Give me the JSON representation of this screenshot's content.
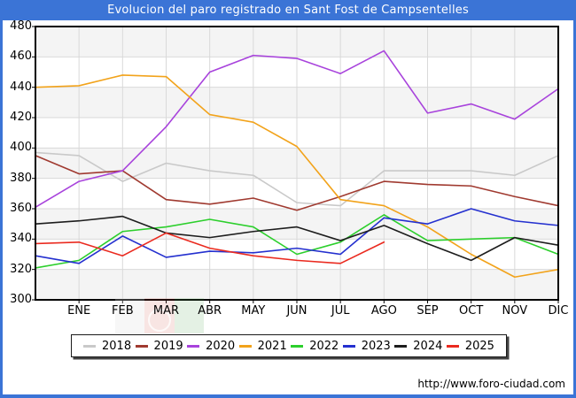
{
  "title": "Evolucion del paro registrado en Sant Fost de Campsentelles",
  "footer": {
    "url": "http://www.foro-ciudad.com"
  },
  "colors": {
    "frame_blue": "#3b74d6",
    "plot_band_gray": "#f4f4f4",
    "gridline": "#d9d9d9",
    "plot_border": "#000000"
  },
  "chart_data": {
    "type": "line",
    "title": "Evolucion del paro registrado en Sant Fost de Campsentelles",
    "xlabel": "",
    "ylabel": "",
    "categories": [
      "ENE",
      "FEB",
      "MAR",
      "ABR",
      "MAY",
      "JUN",
      "JUL",
      "AGO",
      "SEP",
      "OCT",
      "NOV",
      "DIC"
    ],
    "x_note": "each series has 13 points: the first is drawn on the left axis just before ENE",
    "ylim": [
      300,
      480
    ],
    "yticks": [
      480,
      460,
      440,
      420,
      400,
      380,
      360,
      340,
      320,
      300
    ],
    "grid": true,
    "legend_position": "bottom",
    "series": [
      {
        "name": "2018",
        "color": "#c9c9c9",
        "values": [
          397,
          395,
          378,
          390,
          385,
          382,
          364,
          362,
          385,
          385,
          385,
          382,
          395
        ]
      },
      {
        "name": "2019",
        "color": "#a03a30",
        "values": [
          395,
          383,
          385,
          366,
          363,
          367,
          359,
          368,
          378,
          376,
          375,
          368,
          362
        ]
      },
      {
        "name": "2020",
        "color": "#a843dc",
        "values": [
          361,
          378,
          385,
          414,
          450,
          461,
          459,
          449,
          464,
          423,
          429,
          419,
          439
        ]
      },
      {
        "name": "2021",
        "color": "#f2a31b",
        "values": [
          440,
          441,
          448,
          447,
          422,
          417,
          401,
          366,
          362,
          348,
          330,
          315,
          320
        ]
      },
      {
        "name": "2022",
        "color": "#2ccf2c",
        "values": [
          321,
          326,
          345,
          348,
          353,
          348,
          330,
          338,
          356,
          339,
          340,
          341,
          330
        ]
      },
      {
        "name": "2023",
        "color": "#2430cf",
        "values": [
          329,
          324,
          342,
          328,
          332,
          331,
          334,
          330,
          354,
          350,
          360,
          352,
          349
        ]
      },
      {
        "name": "2024",
        "color": "#1d1d1d",
        "values": [
          350,
          352,
          355,
          344,
          341,
          345,
          348,
          339,
          349,
          337,
          326,
          341,
          336
        ]
      },
      {
        "name": "2025",
        "color": "#ea2a1f",
        "values": [
          337,
          338,
          329,
          344,
          334,
          329,
          326,
          324,
          338
        ]
      }
    ]
  }
}
